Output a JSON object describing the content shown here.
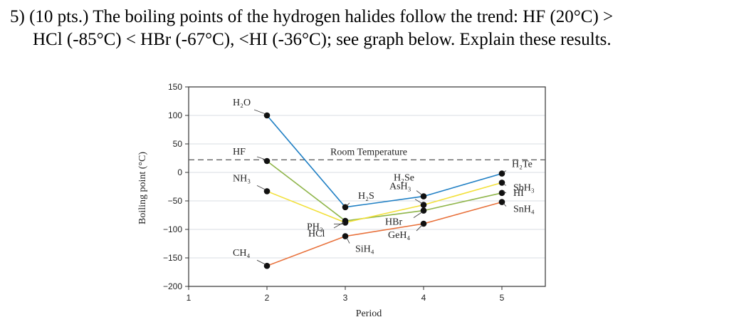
{
  "question": {
    "line1": "5) (10 pts.) The boiling points of the hydrogen halides follow the trend:  HF (20°C)  >",
    "line2": "HCl (-85°C) < HBr (-67°C), <HI (-36°C); see graph below.  Explain these results."
  },
  "chart_data": {
    "type": "line",
    "xlabel": "Period",
    "ylabel": "Boiling point (°C)",
    "xlim": [
      1,
      5.6
    ],
    "ylim": [
      -200,
      150
    ],
    "xticks": [
      1,
      2,
      3,
      4,
      5
    ],
    "yticks": [
      150,
      100,
      50,
      0,
      -50,
      -100,
      -150,
      -200
    ],
    "grid": "horizontal",
    "reference_line": {
      "label": "Room Temperature",
      "y": 22
    },
    "series": [
      {
        "color": "#1f7fc4",
        "x": [
          2,
          3,
          4,
          5
        ],
        "y": [
          100,
          -61,
          -42,
          -2
        ],
        "labels": [
          "H₂O",
          "H₂S",
          "H₂Se",
          "H₂Te"
        ]
      },
      {
        "color": "#8fb54a",
        "x": [
          2,
          3,
          4,
          5
        ],
        "y": [
          20,
          -85,
          -67,
          -36
        ],
        "labels": [
          "HF",
          "HCl",
          "HBr",
          "HI"
        ]
      },
      {
        "color": "#f2e03a",
        "x": [
          2,
          3,
          4,
          5
        ],
        "y": [
          -33,
          -88,
          -57,
          -18
        ],
        "labels": [
          "NH₃",
          "PH₃",
          "AsH₃",
          "SbH₃"
        ]
      },
      {
        "color": "#e8703a",
        "x": [
          2,
          3,
          4,
          5
        ],
        "y": [
          -164,
          -112,
          -90,
          -52
        ],
        "labels": [
          "CH₄",
          "SiH₄",
          "GeH₄",
          "SnH₄"
        ]
      }
    ],
    "label_colors": {
      "H₂O": "#c8102e"
    }
  }
}
